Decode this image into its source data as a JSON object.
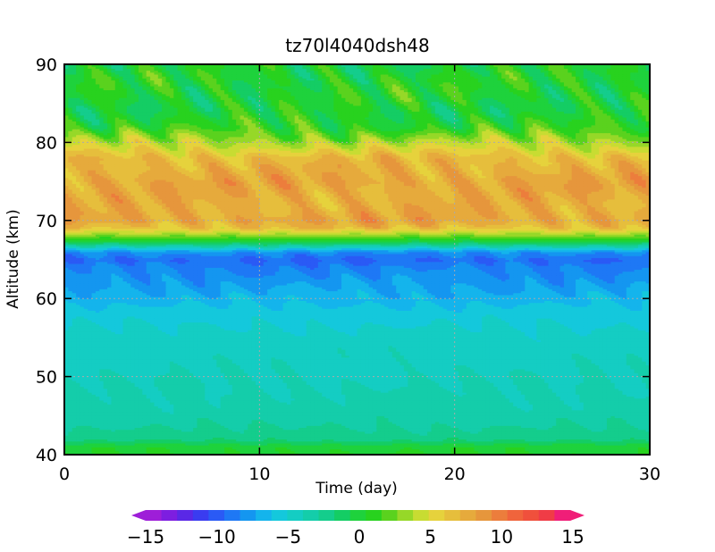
{
  "chart_data": {
    "type": "heatmap",
    "title": "tz70l4040dsh48",
    "xlabel": "Time (day)",
    "ylabel": "Altitude (km)",
    "xlim": [
      0,
      30
    ],
    "ylim": [
      40,
      90
    ],
    "x_ticks": [
      "0",
      "10",
      "20",
      "30"
    ],
    "y_ticks": [
      "40",
      "50",
      "60",
      "70",
      "80",
      "90"
    ],
    "grid": true,
    "colorbar": {
      "orientation": "horizontal",
      "position": "bottom",
      "range": [
        -15,
        15
      ],
      "tick_labels": [
        "−15",
        "−10",
        "−5",
        "0",
        "5",
        "10",
        "15"
      ],
      "extend": "both",
      "colors": [
        "#9e1ed8",
        "#7d1ee0",
        "#5a28e6",
        "#3a3cf0",
        "#2a5af5",
        "#1e78f5",
        "#1496f0",
        "#14b4ec",
        "#14c8dc",
        "#14cdc3",
        "#14cdaa",
        "#14cd8c",
        "#14cd64",
        "#1ed23c",
        "#28d21e",
        "#5ad21e",
        "#96d828",
        "#c8dc32",
        "#e6d23c",
        "#e6be3c",
        "#e6aa3c",
        "#e6963c",
        "#ec7d3c",
        "#f0643c",
        "#f0503c",
        "#f03c46",
        "#f01e78"
      ]
    },
    "altitude_profile": {
      "altitude_km": [
        40,
        41,
        42,
        44,
        46,
        50,
        55,
        58,
        60,
        62,
        64,
        65,
        66,
        66.5,
        67,
        67.5,
        68,
        68.5,
        69,
        70,
        72,
        75,
        78,
        80,
        82,
        84,
        86,
        88,
        90
      ],
      "value": [
        0.5,
        0.3,
        -2.0,
        -3.0,
        -3.5,
        -4.0,
        -4.5,
        -5.5,
        -6.5,
        -7.5,
        -8.5,
        -9.5,
        -8.0,
        -5.0,
        -2.0,
        0.5,
        2.5,
        4.5,
        6.5,
        8.0,
        7.5,
        8.0,
        7.0,
        4.0,
        1.0,
        0.0,
        0.5,
        0.5,
        0.0
      ]
    }
  }
}
